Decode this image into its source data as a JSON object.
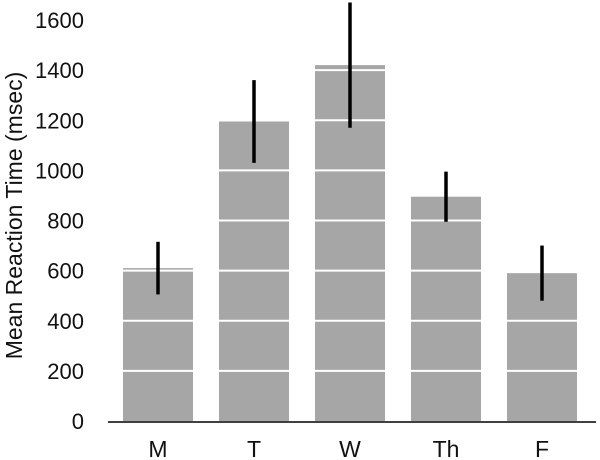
{
  "chart_data": {
    "type": "bar",
    "title": "",
    "xlabel": "",
    "ylabel": "Mean Reaction Time (msec)",
    "categories": [
      "M",
      "T",
      "W",
      "Th",
      "F"
    ],
    "values": [
      610,
      1195,
      1420,
      895,
      590
    ],
    "error": [
      105,
      165,
      250,
      100,
      110
    ],
    "ylim": [
      0,
      1600
    ],
    "yticks": [
      "0",
      "200",
      "400",
      "600",
      "800",
      "1000",
      "1200",
      "1400",
      "1600"
    ],
    "grid": "white lines across bars",
    "legend": "none",
    "colors": {
      "bar": "#a6a6a6",
      "error_bar": "#000000",
      "grid": "#ffffff",
      "axis": "#000000"
    }
  }
}
